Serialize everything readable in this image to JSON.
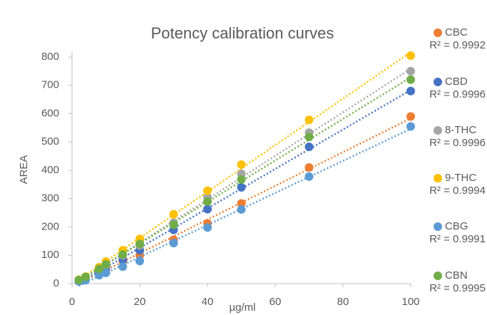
{
  "chart_data": {
    "type": "scatter",
    "title": "Potency calibration curves",
    "x_label": "µg/ml",
    "y_label": "AREA",
    "xlim": [
      0,
      100
    ],
    "xticks": [
      0,
      20,
      40,
      60,
      80,
      100
    ],
    "ylim": [
      0,
      800
    ],
    "yticks": [
      0,
      100,
      200,
      300,
      400,
      500,
      600,
      700,
      800
    ],
    "trendline": true,
    "legend": "right",
    "x": [
      2,
      4,
      8,
      10,
      15,
      20,
      30,
      40,
      50,
      70,
      100
    ],
    "series": [
      {
        "name": "CBC",
        "color": "#ed7d31",
        "r_squared_label": "R² = 0.9992",
        "values": [
          10,
          18,
          40,
          50,
          80,
          100,
          155,
          213,
          283,
          410,
          590
        ]
      },
      {
        "name": "CBD",
        "color": "#4472c4",
        "r_squared_label": "R² = 0.9996",
        "values": [
          10,
          20,
          45,
          55,
          85,
          118,
          190,
          263,
          340,
          483,
          680
        ]
      },
      {
        "name": "8-THC",
        "color": "#a5a5a5",
        "r_squared_label": "R² = 0.9996",
        "values": [
          12,
          22,
          50,
          65,
          100,
          135,
          215,
          305,
          388,
          533,
          750
        ]
      },
      {
        "name": "9-THC",
        "color": "#ffc000",
        "r_squared_label": "R² = 0.9994",
        "values": [
          14,
          25,
          58,
          78,
          118,
          158,
          245,
          328,
          420,
          578,
          805
        ]
      },
      {
        "name": "CBG",
        "color": "#5b9bd5",
        "r_squared_label": "R² = 0.9991",
        "values": [
          8,
          12,
          30,
          38,
          60,
          80,
          143,
          198,
          262,
          378,
          555
        ]
      },
      {
        "name": "CBN",
        "color": "#70ad47",
        "r_squared_label": "R² = 0.9995",
        "values": [
          13,
          24,
          52,
          68,
          103,
          140,
          208,
          290,
          368,
          518,
          720
        ]
      }
    ]
  }
}
